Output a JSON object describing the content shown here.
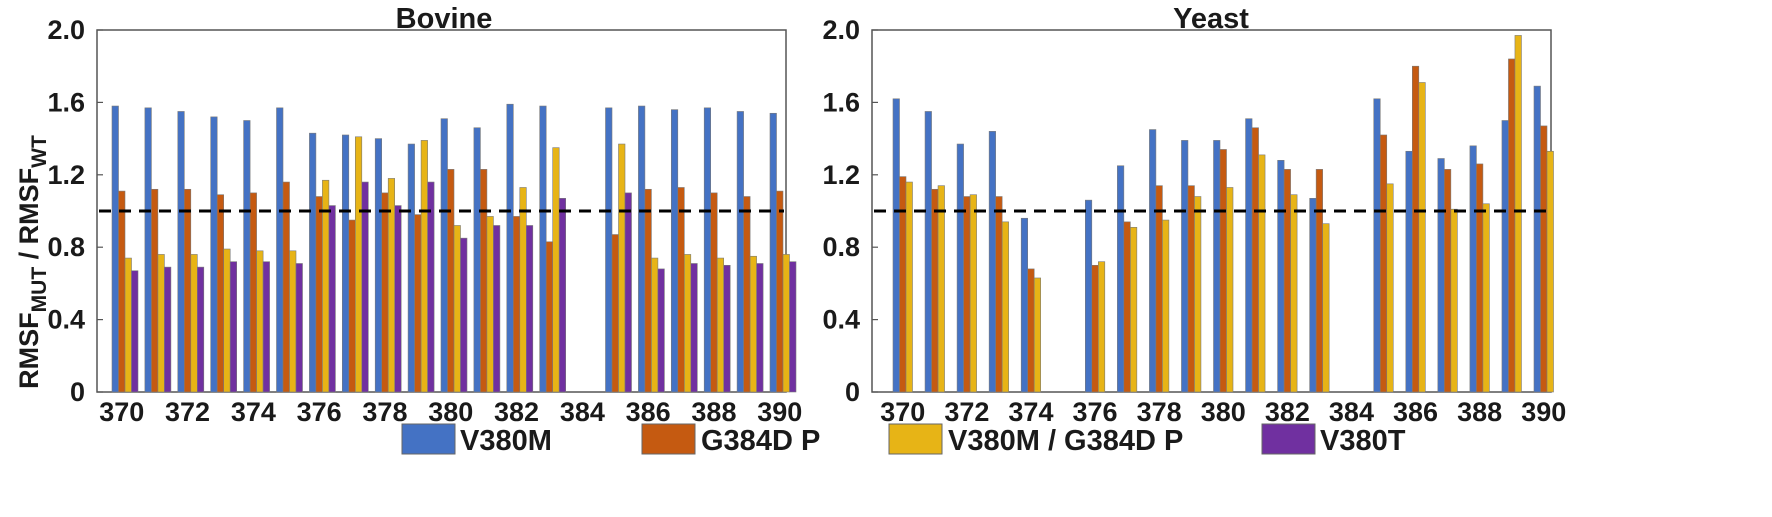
{
  "y_label": {
    "main": "RMSF",
    "sub1": "MUT",
    "sep": " / RMSF",
    "sub2": "WT"
  },
  "chart_data": [
    {
      "type": "bar",
      "title": "Bovine",
      "x_tick_labels": [
        "370",
        "372",
        "374",
        "376",
        "378",
        "380",
        "382",
        "384",
        "386",
        "388",
        "390"
      ],
      "y_ticks": [
        "0",
        "0.4",
        "0.8",
        "1.2",
        "1.6",
        "2.0"
      ],
      "ylim": [
        0,
        2.0
      ],
      "reference_line": 1.0,
      "categories": [
        370,
        371,
        372,
        373,
        374,
        375,
        376,
        377,
        378,
        379,
        380,
        381,
        382,
        383,
        384,
        385,
        386,
        387,
        388,
        389,
        390
      ],
      "series": [
        {
          "name": "V380M",
          "values": [
            1.58,
            1.57,
            1.55,
            1.52,
            1.5,
            1.57,
            1.43,
            1.42,
            1.4,
            1.37,
            1.51,
            1.46,
            1.59,
            1.58,
            null,
            1.57,
            1.58,
            1.56,
            1.57,
            1.55,
            1.54
          ]
        },
        {
          "name": "G384D P",
          "values": [
            1.11,
            1.12,
            1.12,
            1.09,
            1.1,
            1.16,
            1.08,
            0.95,
            1.1,
            0.98,
            1.23,
            1.23,
            0.97,
            0.83,
            null,
            0.87,
            1.12,
            1.13,
            1.1,
            1.08,
            1.11
          ]
        },
        {
          "name": "V380M / G384D P",
          "values": [
            0.74,
            0.76,
            0.76,
            0.79,
            0.78,
            0.78,
            1.17,
            1.41,
            1.18,
            1.39,
            0.92,
            0.97,
            1.13,
            1.35,
            null,
            1.37,
            0.74,
            0.76,
            0.74,
            0.75,
            0.76
          ]
        },
        {
          "name": "V380T",
          "values": [
            0.67,
            0.69,
            0.69,
            0.72,
            0.72,
            0.71,
            1.03,
            1.16,
            1.03,
            1.16,
            0.85,
            0.92,
            0.92,
            1.07,
            null,
            1.1,
            0.68,
            0.71,
            0.7,
            0.71,
            0.72
          ]
        }
      ]
    },
    {
      "type": "bar",
      "title": "Yeast",
      "x_tick_labels": [
        "370",
        "372",
        "374",
        "376",
        "378",
        "380",
        "382",
        "384",
        "386",
        "388",
        "390"
      ],
      "y_ticks": [
        "0",
        "0.4",
        "0.8",
        "1.2",
        "1.6",
        "2.0"
      ],
      "ylim": [
        0,
        2.0
      ],
      "reference_line": 1.0,
      "categories": [
        370,
        371,
        372,
        373,
        374,
        375,
        376,
        377,
        378,
        379,
        380,
        381,
        382,
        383,
        384,
        385,
        386,
        387,
        388,
        389,
        390
      ],
      "series": [
        {
          "name": "V380M",
          "values": [
            1.62,
            1.55,
            1.37,
            1.44,
            0.96,
            null,
            1.06,
            1.25,
            1.45,
            1.39,
            1.39,
            1.51,
            1.28,
            1.07,
            null,
            1.62,
            1.33,
            1.29,
            1.36,
            1.5,
            1.69
          ]
        },
        {
          "name": "G384D P",
          "values": [
            1.19,
            1.12,
            1.08,
            1.08,
            0.68,
            null,
            0.7,
            0.94,
            1.14,
            1.14,
            1.34,
            1.46,
            1.23,
            1.23,
            null,
            1.42,
            1.8,
            1.23,
            1.26,
            1.84,
            1.47
          ]
        },
        {
          "name": "V380M / G384D P",
          "values": [
            1.16,
            1.14,
            1.09,
            0.94,
            0.63,
            null,
            0.72,
            0.91,
            0.95,
            1.08,
            1.13,
            1.31,
            1.09,
            0.93,
            null,
            1.15,
            1.71,
            1.01,
            1.04,
            1.97,
            1.33
          ]
        }
      ]
    }
  ],
  "legend": [
    {
      "label": "V380M",
      "color": "#4472c4"
    },
    {
      "label": "G384D P",
      "color": "#c55a11"
    },
    {
      "label": "V380M / G384D P",
      "color": "#e7b416"
    },
    {
      "label": "V380T",
      "color": "#7030a0"
    }
  ]
}
